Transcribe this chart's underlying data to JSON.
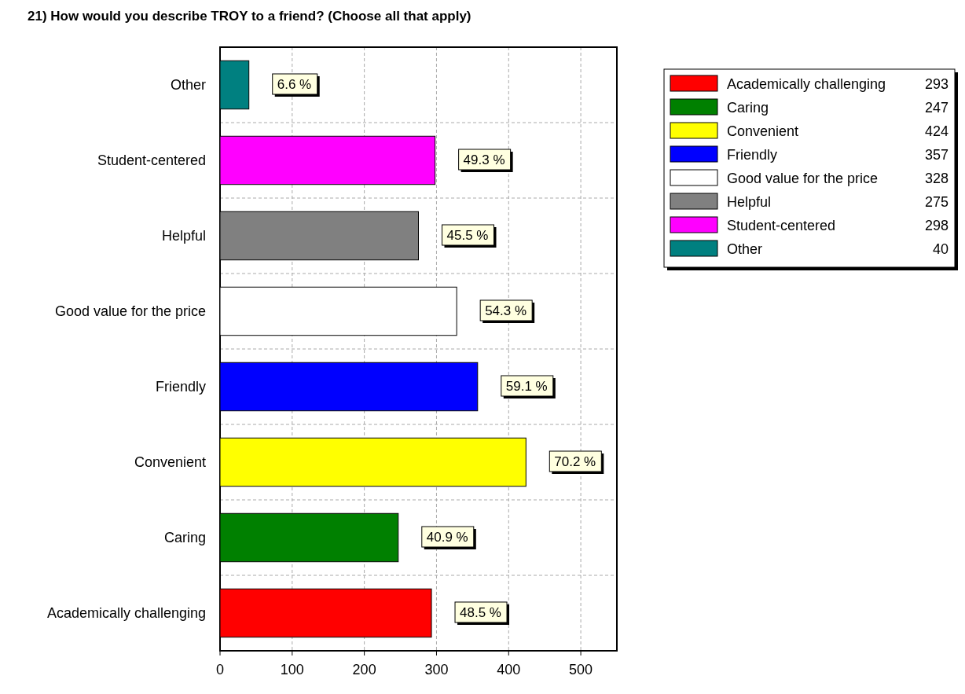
{
  "chart_data": {
    "type": "bar",
    "orientation": "horizontal",
    "stacked": true,
    "title": "21) How would you describe TROY to a friend? (Choose all that apply)",
    "categories": [
      "Other",
      "Student-centered",
      "Helpful",
      "Good value for the price",
      "Friendly",
      "Convenient",
      "Caring",
      "Academically challenging"
    ],
    "series": [
      {
        "name": "Academically challenging",
        "color": "#ff0000",
        "values": [
          null,
          null,
          null,
          null,
          null,
          null,
          null,
          293
        ]
      },
      {
        "name": "Caring",
        "color": "#008000",
        "values": [
          null,
          null,
          null,
          null,
          null,
          null,
          247,
          null
        ]
      },
      {
        "name": "Convenient",
        "color": "#ffff00",
        "values": [
          null,
          null,
          null,
          null,
          null,
          424,
          null,
          null
        ]
      },
      {
        "name": "Friendly",
        "color": "#0000ff",
        "values": [
          null,
          null,
          null,
          null,
          357,
          null,
          null,
          null
        ]
      },
      {
        "name": "Good value for the price",
        "color": "#ffffff",
        "values": [
          null,
          null,
          null,
          328,
          null,
          null,
          null,
          null
        ]
      },
      {
        "name": "Helpful",
        "color": "#808080",
        "values": [
          null,
          null,
          275,
          null,
          null,
          null,
          null,
          null
        ]
      },
      {
        "name": "Student-centered",
        "color": "#ff00ff",
        "values": [
          null,
          298,
          null,
          null,
          null,
          null,
          null,
          null
        ]
      },
      {
        "name": "Other",
        "color": "#008080",
        "values": [
          40,
          null,
          null,
          null,
          null,
          null,
          null,
          null
        ]
      }
    ],
    "annotations": [
      "293",
      "247",
      "424",
      "357",
      "328",
      "275",
      "298",
      "40",
      {
        "text": "6.6 %",
        "x": 40,
        "y": "Other"
      },
      {
        "text": "49.3 %",
        "x": 298,
        "y": "Student-centered"
      },
      {
        "text": "45.5 %",
        "x": 275,
        "y": "Helpful"
      },
      {
        "text": "54.3 %",
        "x": 328,
        "y": "Good value for the price"
      },
      {
        "text": "59.1 %",
        "x": 357,
        "y": "Friendly"
      },
      {
        "text": "70.2 %",
        "x": 424,
        "y": "Convenient"
      },
      {
        "text": "40.9 %",
        "x": 247,
        "y": "Caring"
      },
      {
        "text": "48.5 %",
        "x": 293,
        "y": "Academically challenging"
      }
    ],
    "xlim": [
      0,
      550
    ],
    "xticks": [
      0,
      100,
      200,
      300,
      400,
      500
    ],
    "grid": true,
    "legend": "top right"
  }
}
